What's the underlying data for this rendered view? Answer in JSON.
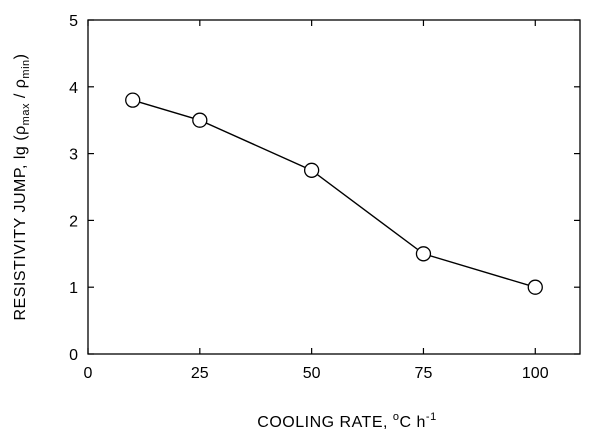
{
  "chart_data": {
    "type": "line",
    "title": "",
    "xlabel": {
      "prefix": "COOLING RATE, ",
      "sup1": "o",
      "unit": "C h",
      "sup2": "-1"
    },
    "ylabel": {
      "prefix": "RESISTIVITY JUMP, lg (",
      "rho1": "ρ",
      "sub1": "max",
      "slash": " / ",
      "rho2": "ρ",
      "sub2": "min",
      "suffix": ")"
    },
    "xlim": [
      0,
      110
    ],
    "ylim": [
      0,
      5
    ],
    "xticks": [
      0,
      25,
      50,
      75,
      100
    ],
    "yticks": [
      0,
      1,
      2,
      3,
      4,
      5
    ],
    "marker": "open-circle",
    "line_color": "#000000",
    "grid": false,
    "series": [
      {
        "x": [
          10,
          25,
          50,
          75,
          100
        ],
        "y": [
          3.8,
          3.5,
          2.75,
          1.5,
          1.0
        ]
      }
    ]
  }
}
